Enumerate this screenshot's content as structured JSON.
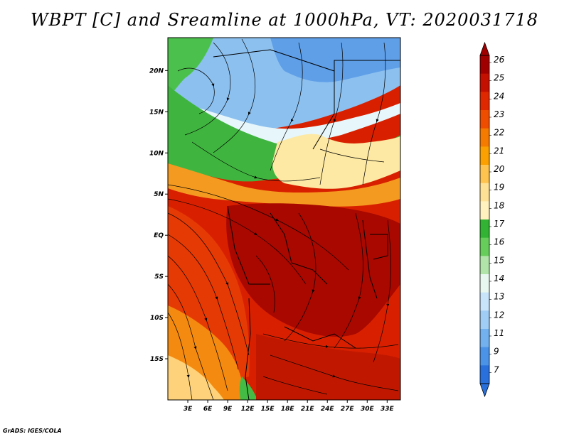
{
  "title": "WBPT [C] and Sreamline at 1000hPa, VT: 2020031718",
  "credit": "GrADS: IGES/COLA",
  "map": {
    "lon_range": [
      0,
      35
    ],
    "lat_range": [
      -20,
      24
    ],
    "lat_ticks": [
      {
        "value": 20,
        "label": "20N"
      },
      {
        "value": 15,
        "label": "15N"
      },
      {
        "value": 10,
        "label": "10N"
      },
      {
        "value": 5,
        "label": "5N"
      },
      {
        "value": 0,
        "label": "EQ"
      },
      {
        "value": -5,
        "label": "5S"
      },
      {
        "value": -10,
        "label": "10S"
      },
      {
        "value": -15,
        "label": "15S"
      }
    ],
    "lon_ticks": [
      {
        "value": 3,
        "label": "3E"
      },
      {
        "value": 6,
        "label": "6E"
      },
      {
        "value": 9,
        "label": "9E"
      },
      {
        "value": 12,
        "label": "12E"
      },
      {
        "value": 15,
        "label": "15E"
      },
      {
        "value": 18,
        "label": "18E"
      },
      {
        "value": 21,
        "label": "21E"
      },
      {
        "value": 24,
        "label": "24E"
      },
      {
        "value": 27,
        "label": "27E"
      },
      {
        "value": 30,
        "label": "30E"
      },
      {
        "value": 33,
        "label": "33E"
      }
    ]
  },
  "colorbar": {
    "labels": [
      "26",
      "25",
      "24",
      "23",
      "22",
      "21",
      "20",
      "19",
      "18",
      "17",
      "16",
      "15",
      "14",
      "13",
      "12",
      "11",
      "9",
      "7"
    ],
    "colors": [
      "#a00000",
      "#c41000",
      "#e02800",
      "#ee4d00",
      "#f57a00",
      "#fba000",
      "#fec24f",
      "#fee195",
      "#fff2bf",
      "#33b333",
      "#66cc5a",
      "#b0e4a8",
      "#e8f8f0",
      "#c8e4fa",
      "#a0cdf5",
      "#72b0ee",
      "#4b93e6",
      "#2a70dc"
    ]
  }
}
